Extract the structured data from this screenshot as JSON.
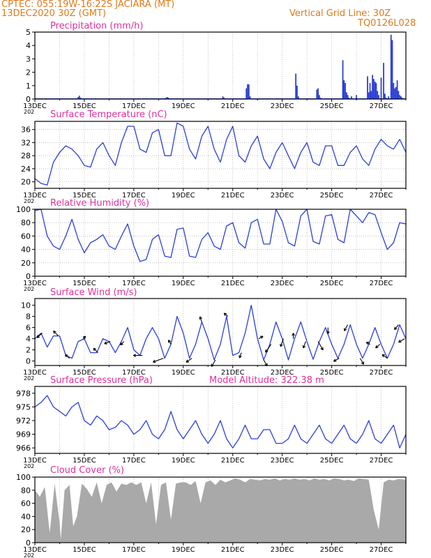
{
  "header": {
    "line1": "CPTEC:   055:19W-16:22S   JACIARA (MT)",
    "line2": "13DEC2020 30Z (GMT)",
    "right1": "Vertical Grid Line: 30Z",
    "right2": "TQ0126L028"
  },
  "colors": {
    "header": "#e07a1a",
    "title": "#e0309a",
    "series": "#2a3fd8",
    "bars": "#2a3fd8",
    "cloud": "#a9a9a9",
    "wind_arrow": "#000000",
    "grid": "#999999"
  },
  "shared_axis": {
    "x_ticks": [
      "13DEC",
      "15DEC",
      "17DEC",
      "19DEC",
      "21DEC",
      "23DEC",
      "25DEC",
      "27DEC"
    ],
    "year_fragment": "202",
    "x_range_days": [
      0,
      15
    ]
  },
  "chart_data": [
    {
      "id": "precip",
      "type": "bar",
      "title": "Precipitation (mm/h)",
      "ylim": [
        0,
        5
      ],
      "yticks": [
        0,
        1,
        2,
        3,
        4,
        5
      ],
      "grid": "vertical dotted at each day",
      "x_days": [
        1.75,
        1.8,
        1.85,
        5.3,
        5.35,
        5.4,
        5.45,
        7.6,
        7.65,
        8.55,
        8.6,
        8.65,
        8.7,
        10.55,
        10.6,
        10.65,
        11.4,
        11.45,
        11.5,
        11.55,
        11.6,
        12.45,
        12.5,
        12.55,
        12.6,
        12.65,
        12.7,
        12.75,
        12.8,
        13.0,
        13.45,
        13.5,
        13.55,
        13.6,
        13.65,
        13.7,
        13.75,
        13.8,
        13.85,
        13.9,
        14.0,
        14.1,
        14.15,
        14.2,
        14.3,
        14.4,
        14.45,
        14.5,
        14.55,
        14.6,
        14.65,
        14.7,
        14.75,
        14.8,
        14.85
      ],
      "values": [
        0.15,
        0.25,
        0.1,
        0.1,
        0.15,
        0.1,
        0.05,
        0.2,
        0.1,
        0.8,
        1.1,
        1.1,
        0.2,
        1.9,
        1.0,
        0.2,
        0.7,
        0.8,
        0.3,
        0.1,
        0.05,
        2.9,
        1.4,
        1.2,
        0.5,
        0.3,
        0.1,
        0.05,
        0.2,
        0.3,
        1.7,
        0.5,
        1.2,
        0.6,
        1.8,
        1.5,
        1.3,
        1.2,
        0.6,
        0.3,
        1.6,
        2.7,
        0.4,
        0.1,
        0.2,
        4.8,
        4.4,
        1.2,
        0.8,
        0.9,
        1.4,
        0.6,
        0.3,
        0.2,
        0.1
      ]
    },
    {
      "id": "temp",
      "type": "line",
      "title": "Surface Temperature (nC)",
      "ylim": [
        18,
        38.5
      ],
      "yticks": [
        20,
        24,
        28,
        32,
        36
      ],
      "grid": "horizontal dotted at ticks, vertical dotted at each day",
      "x_days": [
        0,
        0.25,
        0.5,
        0.75,
        1,
        1.25,
        1.5,
        1.75,
        2,
        2.25,
        2.5,
        2.75,
        3,
        3.25,
        3.5,
        3.75,
        4,
        4.25,
        4.5,
        4.75,
        5,
        5.25,
        5.5,
        5.75,
        6,
        6.25,
        6.5,
        6.75,
        7,
        7.25,
        7.5,
        7.75,
        8,
        8.25,
        8.5,
        8.75,
        9,
        9.25,
        9.5,
        9.75,
        10,
        10.25,
        10.5,
        10.75,
        11,
        11.25,
        11.5,
        11.75,
        12,
        12.25,
        12.5,
        12.75,
        13,
        13.25,
        13.5,
        13.75,
        14,
        14.25,
        14.5,
        14.75,
        15
      ],
      "values": [
        21,
        19.5,
        19,
        26,
        29,
        31,
        30,
        28,
        25,
        24.5,
        30,
        32,
        28,
        25,
        32,
        37,
        37,
        30,
        29,
        35,
        36,
        28,
        28,
        38,
        37,
        30,
        27,
        34,
        37,
        30,
        26,
        33,
        37,
        28,
        26,
        31,
        34,
        27,
        24,
        29,
        32,
        28,
        24,
        29,
        32,
        26,
        25,
        31,
        31,
        25,
        25,
        29,
        31,
        27,
        25,
        30,
        33,
        31,
        30,
        33,
        29
      ]
    },
    {
      "id": "rh",
      "type": "line",
      "title": "Relative Humidity (%)",
      "ylim": [
        0,
        100
      ],
      "yticks": [
        0,
        20,
        40,
        60,
        80,
        100
      ],
      "grid": "horizontal dotted at ticks, vertical dotted at each day",
      "x_days": [
        0,
        0.25,
        0.5,
        0.75,
        1,
        1.25,
        1.5,
        1.75,
        2,
        2.25,
        2.5,
        2.75,
        3,
        3.25,
        3.5,
        3.75,
        4,
        4.25,
        4.5,
        4.75,
        5,
        5.25,
        5.5,
        5.75,
        6,
        6.25,
        6.5,
        6.75,
        7,
        7.25,
        7.5,
        7.75,
        8,
        8.25,
        8.5,
        8.75,
        9,
        9.25,
        9.5,
        9.75,
        10,
        10.25,
        10.5,
        10.75,
        11,
        11.25,
        11.5,
        11.75,
        12,
        12.25,
        12.5,
        12.75,
        13,
        13.25,
        13.5,
        13.75,
        14,
        14.25,
        14.5,
        14.75,
        15
      ],
      "values": [
        98,
        100,
        60,
        45,
        40,
        60,
        85,
        55,
        35,
        50,
        55,
        62,
        45,
        40,
        60,
        78,
        45,
        22,
        25,
        55,
        62,
        30,
        28,
        70,
        72,
        30,
        28,
        55,
        65,
        45,
        40,
        75,
        80,
        50,
        42,
        80,
        85,
        48,
        48,
        100,
        82,
        50,
        45,
        90,
        100,
        52,
        48,
        90,
        92,
        55,
        50,
        100,
        90,
        80,
        95,
        92,
        65,
        40,
        50,
        80,
        78
      ]
    },
    {
      "id": "wind",
      "type": "line",
      "title": "Surface Wind (m/s)",
      "ylim": [
        -0.8,
        11.2
      ],
      "yticks": [
        0,
        2,
        4,
        6,
        8,
        10
      ],
      "grid": "vertical dotted at each day",
      "x_days": [
        0,
        0.25,
        0.5,
        0.75,
        1,
        1.25,
        1.5,
        1.75,
        2,
        2.25,
        2.5,
        2.75,
        3,
        3.25,
        3.5,
        3.75,
        4,
        4.25,
        4.5,
        4.75,
        5,
        5.25,
        5.5,
        5.75,
        6,
        6.25,
        6.5,
        6.75,
        7,
        7.25,
        7.5,
        7.75,
        8,
        8.25,
        8.5,
        8.75,
        9,
        9.25,
        9.5,
        9.75,
        10,
        10.25,
        10.5,
        10.75,
        11,
        11.25,
        11.5,
        11.75,
        12,
        12.25,
        12.5,
        12.75,
        13,
        13.25,
        13.5,
        13.75,
        14,
        14.25,
        14.5,
        14.75,
        15
      ],
      "values": [
        4,
        5,
        2.5,
        4.5,
        4.5,
        1,
        0.5,
        3.5,
        4,
        1.5,
        1.5,
        4,
        3.5,
        1.5,
        3.5,
        6,
        2,
        1,
        4,
        6,
        4,
        0.5,
        3,
        8,
        5,
        0.5,
        3,
        7,
        4,
        0.2,
        3,
        8,
        1,
        1.5,
        5,
        10,
        4,
        0.2,
        3,
        7,
        4,
        0.2,
        4,
        7,
        3.5,
        0.3,
        3.5,
        6,
        3,
        0.5,
        3,
        6.5,
        3,
        0.5,
        3,
        6,
        3,
        0.5,
        3,
        6.5,
        4
      ],
      "arrows": [
        {
          "x": 0.3,
          "angle": 220,
          "len": 1.0
        },
        {
          "x": 0.95,
          "angle": 135,
          "len": 1.0
        },
        {
          "x": 1.4,
          "angle": 140,
          "len": 0.8
        },
        {
          "x": 1.95,
          "angle": 45,
          "len": 0.5
        },
        {
          "x": 2.55,
          "angle": 135,
          "len": 0.9
        },
        {
          "x": 3.05,
          "angle": 200,
          "len": 0.9
        },
        {
          "x": 3.6,
          "angle": 225,
          "len": 0.7
        },
        {
          "x": 4.35,
          "angle": 180,
          "len": 1.3
        },
        {
          "x": 5.2,
          "angle": 200,
          "len": 1.6
        },
        {
          "x": 5.5,
          "angle": 120,
          "len": 0.7
        },
        {
          "x": 6.35,
          "angle": 215,
          "len": 1.0
        },
        {
          "x": 6.75,
          "angle": 110,
          "len": 0.8
        },
        {
          "x": 7.3,
          "angle": 240,
          "len": 1.1
        },
        {
          "x": 7.8,
          "angle": 140,
          "len": 0.7
        },
        {
          "x": 8.35,
          "angle": 250,
          "len": 0.8
        },
        {
          "x": 9.05,
          "angle": 30,
          "len": 0.7
        },
        {
          "x": 9.25,
          "angle": 300,
          "len": 1.0
        },
        {
          "x": 9.55,
          "angle": 235,
          "len": 1.4
        },
        {
          "x": 10.05,
          "angle": 250,
          "len": 1.2
        },
        {
          "x": 10.45,
          "angle": 90,
          "len": 0.8
        },
        {
          "x": 10.95,
          "angle": 250,
          "len": 1.0
        },
        {
          "x": 11.45,
          "angle": 300,
          "len": 1.4
        },
        {
          "x": 11.85,
          "angle": 270,
          "len": 0.9
        },
        {
          "x": 12.3,
          "angle": 210,
          "len": 0.9
        },
        {
          "x": 12.65,
          "angle": 240,
          "len": 1.0
        },
        {
          "x": 13.15,
          "angle": 300,
          "len": 1.0
        },
        {
          "x": 13.55,
          "angle": 150,
          "len": 0.6
        },
        {
          "x": 13.95,
          "angle": 220,
          "len": 0.8
        },
        {
          "x": 14.25,
          "angle": 145,
          "len": 0.9
        },
        {
          "x": 14.7,
          "angle": 230,
          "len": 0.9
        },
        {
          "x": 14.95,
          "angle": 210,
          "len": 1.0
        }
      ]
    },
    {
      "id": "pressure",
      "type": "line",
      "title": "Surface Pressure (hPa)",
      "annotation": "Model Altitude: 322.38 m",
      "ylim": [
        964.8,
        979.5
      ],
      "yticks": [
        966,
        969,
        972,
        975,
        978
      ],
      "grid": "vertical dotted at each day",
      "x_days": [
        0,
        0.25,
        0.5,
        0.75,
        1,
        1.25,
        1.5,
        1.75,
        2,
        2.25,
        2.5,
        2.75,
        3,
        3.25,
        3.5,
        3.75,
        4,
        4.25,
        4.5,
        4.75,
        5,
        5.25,
        5.5,
        5.75,
        6,
        6.25,
        6.5,
        6.75,
        7,
        7.25,
        7.5,
        7.75,
        8,
        8.25,
        8.5,
        8.75,
        9,
        9.25,
        9.5,
        9.75,
        10,
        10.25,
        10.5,
        10.75,
        11,
        11.25,
        11.5,
        11.75,
        12,
        12.25,
        12.5,
        12.75,
        13,
        13.25,
        13.5,
        13.75,
        14,
        14.25,
        14.5,
        14.75,
        15
      ],
      "values": [
        975,
        976,
        977.5,
        975,
        974,
        973,
        975,
        976,
        972,
        971,
        973,
        972,
        970,
        970.5,
        972,
        971,
        969,
        970,
        972,
        969,
        968,
        970,
        974,
        970,
        968,
        970,
        972,
        969,
        967,
        969,
        972,
        968,
        966,
        968,
        971,
        968,
        968,
        970,
        970,
        967,
        967,
        968,
        971,
        968,
        967,
        969,
        971,
        968,
        967,
        969,
        971,
        968,
        967,
        969,
        972,
        968,
        967,
        969,
        971,
        966,
        969
      ]
    },
    {
      "id": "cloud",
      "type": "area",
      "title": "Cloud Cover (%)",
      "ylim": [
        0,
        100
      ],
      "yticks": [
        0,
        20,
        40,
        60,
        80,
        100
      ],
      "grid": "vertical dotted at each day",
      "x_days": [
        0,
        0.2,
        0.4,
        0.6,
        0.8,
        1,
        1.05,
        1.2,
        1.4,
        1.55,
        1.7,
        1.9,
        2.1,
        2.3,
        2.5,
        2.7,
        2.9,
        3.1,
        3.3,
        3.5,
        3.7,
        3.9,
        4.1,
        4.3,
        4.5,
        4.7,
        4.9,
        5.1,
        5.3,
        5.5,
        5.7,
        5.9,
        6.1,
        6.3,
        6.5,
        6.7,
        6.9,
        7.1,
        7.3,
        7.5,
        7.7,
        7.9,
        8.1,
        8.3,
        8.5,
        8.7,
        8.9,
        9.1,
        9.3,
        9.5,
        9.7,
        9.9,
        10.1,
        10.3,
        10.5,
        10.7,
        10.9,
        11.1,
        11.3,
        11.5,
        11.7,
        11.9,
        12.1,
        12.3,
        12.5,
        12.7,
        12.9,
        13.1,
        13.3,
        13.5,
        13.7,
        13.9,
        14.1,
        14.3,
        14.5,
        14.7,
        15
      ],
      "values": [
        80,
        70,
        85,
        15,
        90,
        30,
        5,
        80,
        88,
        25,
        40,
        90,
        82,
        70,
        92,
        60,
        88,
        92,
        78,
        90,
        88,
        92,
        88,
        92,
        60,
        92,
        28,
        88,
        92,
        35,
        90,
        92,
        92,
        88,
        94,
        60,
        92,
        95,
        88,
        96,
        92,
        95,
        98,
        96,
        92,
        97,
        96,
        95,
        97,
        96,
        98,
        95,
        97,
        96,
        98,
        96,
        97,
        95,
        98,
        96,
        97,
        95,
        98,
        97,
        95,
        96,
        94,
        98,
        97,
        96,
        50,
        20,
        92,
        96,
        95,
        97,
        96
      ]
    }
  ]
}
